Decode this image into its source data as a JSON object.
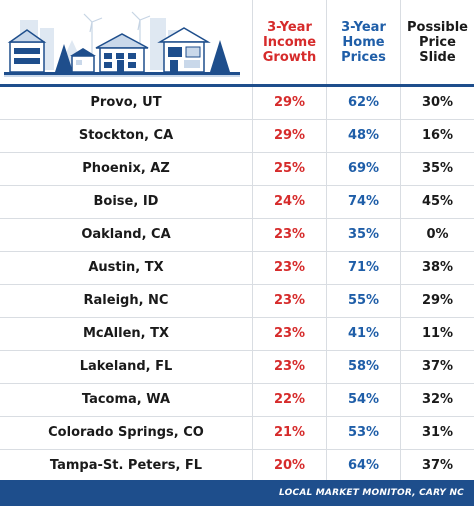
{
  "header": {
    "col_income": "3-Year\nIncome\nGrowth",
    "col_prices": "3-Year\nHome\nPrices",
    "col_slide": "Possible\nPrice\nSlide"
  },
  "rows": [
    {
      "city": "Provo, UT",
      "income": "29%",
      "prices": "62%",
      "slide": "30%"
    },
    {
      "city": "Stockton, CA",
      "income": "29%",
      "prices": "48%",
      "slide": "16%"
    },
    {
      "city": "Phoenix, AZ",
      "income": "25%",
      "prices": "69%",
      "slide": "35%"
    },
    {
      "city": "Boise, ID",
      "income": "24%",
      "prices": "74%",
      "slide": "45%"
    },
    {
      "city": "Oakland, CA",
      "income": "23%",
      "prices": "35%",
      "slide": "0%"
    },
    {
      "city": "Austin, TX",
      "income": "23%",
      "prices": "71%",
      "slide": "38%"
    },
    {
      "city": "Raleigh, NC",
      "income": "23%",
      "prices": "55%",
      "slide": "29%"
    },
    {
      "city": "McAllen, TX",
      "income": "23%",
      "prices": "41%",
      "slide": "11%"
    },
    {
      "city": "Lakeland, FL",
      "income": "23%",
      "prices": "58%",
      "slide": "37%"
    },
    {
      "city": "Tacoma, WA",
      "income": "22%",
      "prices": "54%",
      "slide": "32%"
    },
    {
      "city": "Colorado Springs, CO",
      "income": "21%",
      "prices": "53%",
      "slide": "31%"
    },
    {
      "city": "Tampa-St. Peters, FL",
      "income": "20%",
      "prices": "64%",
      "slide": "37%"
    }
  ],
  "footer": {
    "credit": "LOCAL MARKET MONITOR, CARY NC"
  },
  "colors": {
    "accent_blue": "#1e4e8c",
    "income_red": "#d62b2b",
    "prices_blue": "#1f5ea8"
  }
}
